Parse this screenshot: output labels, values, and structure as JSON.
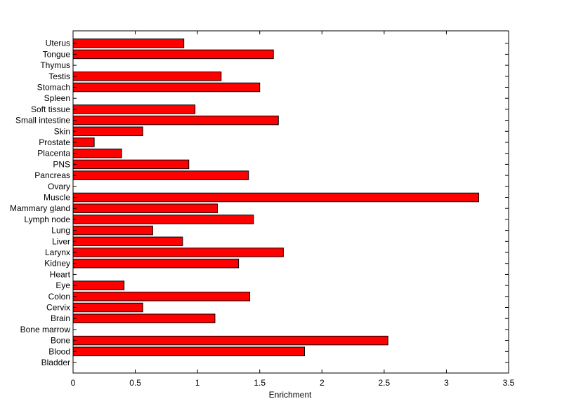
{
  "chart_data": {
    "type": "bar",
    "orientation": "horizontal",
    "title": "",
    "xlabel": "Enrichment",
    "ylabel": "",
    "xlim": [
      0,
      3.5
    ],
    "xticks": [
      "0",
      "0.5",
      "1",
      "1.5",
      "2",
      "2.5",
      "3",
      "3.5"
    ],
    "grid": false,
    "bar_color": "#ff0000",
    "categories": [
      "Bladder",
      "Blood",
      "Bone",
      "Bone marrow",
      "Brain",
      "Cervix",
      "Colon",
      "Eye",
      "Heart",
      "Kidney",
      "Larynx",
      "Liver",
      "Lung",
      "Lymph node",
      "Mammary gland",
      "Muscle",
      "Ovary",
      "Pancreas",
      "PNS",
      "Placenta",
      "Prostate",
      "Skin",
      "Small intestine",
      "Soft tissue",
      "Spleen",
      "Stomach",
      "Testis",
      "Thymus",
      "Tongue",
      "Uterus"
    ],
    "values": [
      0,
      1.86,
      2.53,
      0,
      1.14,
      0.56,
      1.42,
      0.41,
      0,
      1.33,
      1.69,
      0.88,
      0.64,
      1.45,
      1.16,
      3.26,
      0,
      1.41,
      0.93,
      0.39,
      0.17,
      0.56,
      1.65,
      0.98,
      0,
      1.5,
      1.19,
      0,
      1.61,
      0.89
    ]
  }
}
